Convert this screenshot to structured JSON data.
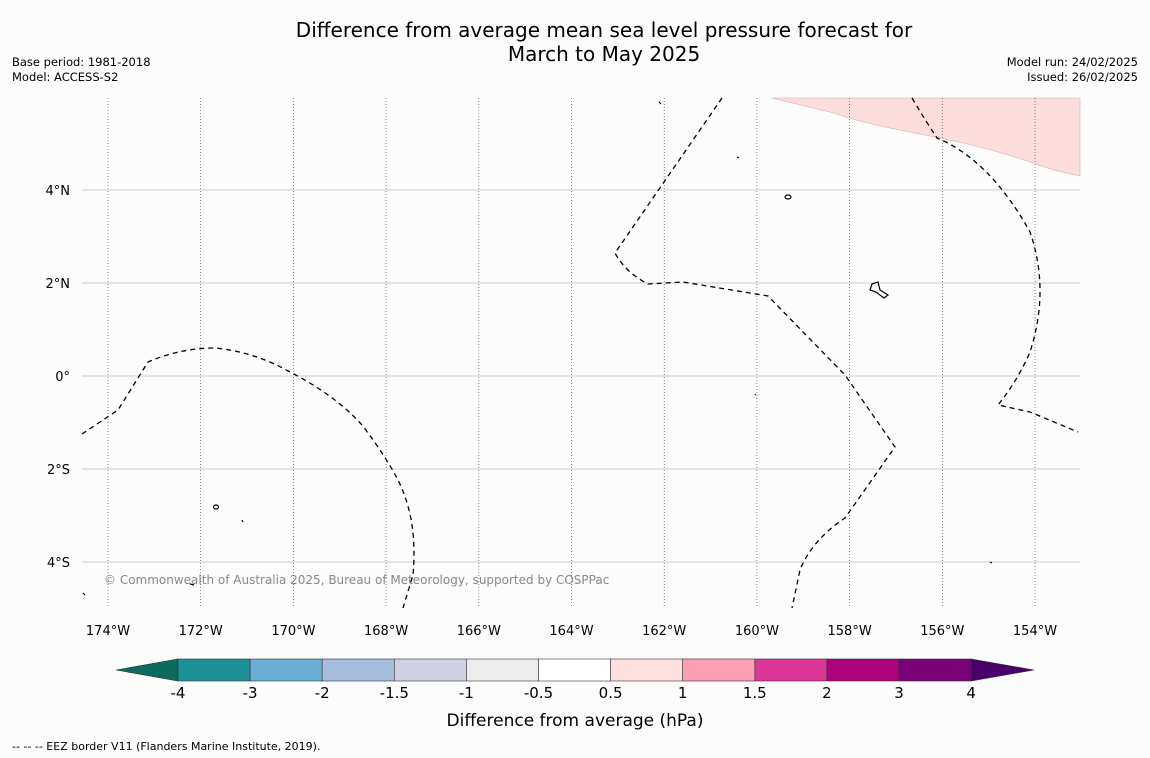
{
  "header": {
    "title_line1": "Difference from average mean sea level pressure forecast for",
    "title_line2": "March to May 2025",
    "base_period": "Base period: 1981-2018",
    "model": "Model: ACCESS-S2",
    "model_run": "Model run: 24/02/2025",
    "issued": "Issued: 26/02/2025"
  },
  "map": {
    "lon_labels": [
      "174°W",
      "172°W",
      "170°W",
      "168°W",
      "166°W",
      "164°W",
      "162°W",
      "160°W",
      "158°W",
      "156°W",
      "154°W"
    ],
    "lat_labels": [
      "4°N",
      "2°N",
      "0°",
      "2°S",
      "4°S"
    ],
    "copyright": "© Commonwealth of Australia 2025, Bureau of Meteorology, supported by COSPPac",
    "anomaly_fill_color": "#fddcdc"
  },
  "colorbar": {
    "tick_labels": [
      "-4",
      "-3",
      "-2",
      "-1.5",
      "-1",
      "-0.5",
      "0.5",
      "1",
      "1.5",
      "2",
      "3",
      "4"
    ],
    "colors": [
      "#0b6b5c",
      "#1e9198",
      "#6aaed6",
      "#a6bddb",
      "#d0d1e6",
      "#ececec",
      "#ffffff",
      "#fde0dd",
      "#fa9fb5",
      "#dd3497",
      "#ae017e",
      "#7a0177",
      "#49006a"
    ],
    "label": "Difference from average (hPa)"
  },
  "footer": {
    "legend_text": "-- -- -- EEZ border V11 (Flanders Marine Institute, 2019)."
  }
}
